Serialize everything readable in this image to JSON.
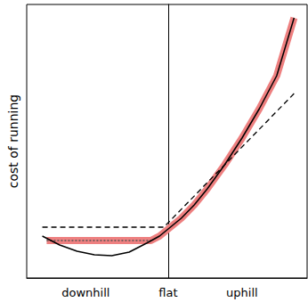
{
  "chart_data": {
    "type": "line",
    "ylabel": "cost of running",
    "xlim": [
      -1.63,
      1.6
    ],
    "xticks": [
      {
        "value": -0.95,
        "label": "downhill"
      },
      {
        "value": 0,
        "label": "flat"
      },
      {
        "value": 0.85,
        "label": "uphill"
      }
    ],
    "ylim": [
      0,
      3.07
    ],
    "tick_labels": "x",
    "grid": false,
    "series": [
      {
        "color": "#ee8080",
        "line_style": "thick",
        "x": [
          -1.4,
          -0.2,
          -0.1,
          0,
          0.15,
          0.3,
          0.45,
          0.65,
          0.85,
          1.05,
          1.25,
          1.45
        ],
        "values": [
          0.42,
          0.42,
          0.47,
          0.55,
          0.67,
          0.82,
          1.0,
          1.27,
          1.57,
          1.9,
          2.27,
          2.92
        ]
      },
      {
        "color": "#555555",
        "line_style": "dotted",
        "x": [
          -1.4,
          -0.2
        ],
        "values": [
          0.42,
          0.42
        ]
      },
      {
        "color": "#000000",
        "line_style": "solid",
        "x": [
          -1.45,
          -1.25,
          -1.05,
          -0.85,
          -0.65,
          -0.45,
          -0.25,
          -0.1,
          0,
          0.15,
          0.3,
          0.45,
          0.65,
          0.85,
          1.05,
          1.25,
          1.45
        ],
        "values": [
          0.47,
          0.37,
          0.3,
          0.26,
          0.25,
          0.29,
          0.39,
          0.47,
          0.55,
          0.67,
          0.82,
          1.0,
          1.27,
          1.57,
          1.9,
          2.27,
          2.92
        ]
      },
      {
        "color": "#000000",
        "line_style": "dashed",
        "x": [
          -1.45,
          -0.05,
          1.45
        ],
        "values": [
          0.57,
          0.57,
          2.07
        ]
      }
    ]
  }
}
